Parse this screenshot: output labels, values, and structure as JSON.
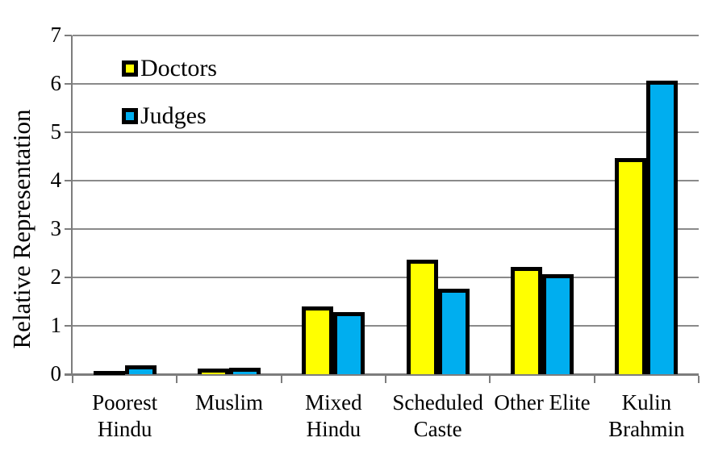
{
  "chart_data": {
    "type": "bar",
    "title": "",
    "categories": [
      "Poorest\nHindu",
      "Muslim",
      "Mixed\nHindu",
      "Scheduled\nCaste",
      "Other Elite",
      "Kulin\nBrahmin"
    ],
    "series": [
      {
        "name": "Doctors",
        "color": "#FFFF00",
        "values": [
          0.07,
          0.11,
          1.4,
          2.37,
          2.21,
          4.47
        ]
      },
      {
        "name": "Judges",
        "color": "#00AEEF",
        "values": [
          0.18,
          0.14,
          1.28,
          1.76,
          2.07,
          6.07
        ]
      }
    ],
    "xlabel": "",
    "ylabel": "Relative Representation",
    "ylim": [
      0,
      7
    ],
    "yticks": [
      0,
      1,
      2,
      3,
      4,
      5,
      6,
      7
    ],
    "grid": true,
    "legend_position": "top-left-inside",
    "styles": {
      "bar_border_color": "#000000",
      "gridline_color": "#8A8A8A",
      "axis_color": "#7D7D7D",
      "background_color": "#FFFFFF",
      "text_color": "#000000"
    }
  }
}
